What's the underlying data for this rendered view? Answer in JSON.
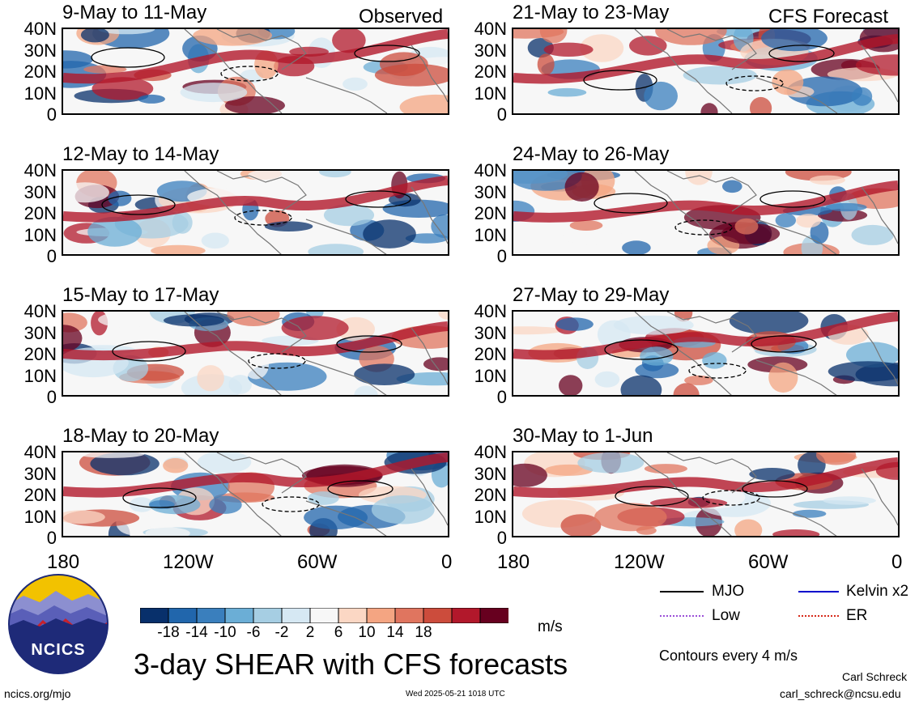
{
  "header": {
    "observed_label": "Observed",
    "forecast_label": "CFS Forecast"
  },
  "panels": {
    "left": [
      {
        "title": "9-May to 11-May"
      },
      {
        "title": "12-May to 14-May"
      },
      {
        "title": "15-May to 17-May"
      },
      {
        "title": "18-May to 20-May"
      }
    ],
    "right": [
      {
        "title": "21-May to 23-May"
      },
      {
        "title": "24-May to 26-May"
      },
      {
        "title": "27-May to 29-May"
      },
      {
        "title": "30-May to 1-Jun"
      }
    ]
  },
  "axes": {
    "lat_labels": [
      "40N",
      "30N",
      "20N",
      "10N",
      "0"
    ],
    "lon_labels": [
      "180",
      "120W",
      "60W",
      "0"
    ]
  },
  "colorbar": {
    "labels": [
      "-18",
      "-14",
      "-10",
      "-6",
      "-2",
      "2",
      "6",
      "10",
      "14",
      "18"
    ],
    "colors": [
      "#08306b",
      "#2166ac",
      "#3a7fbd",
      "#6baed6",
      "#a6cee3",
      "#d6e8f3",
      "#f7f7f7",
      "#fbd7c4",
      "#f4a582",
      "#e0755f",
      "#cc4c3c",
      "#b2182b",
      "#67001f"
    ],
    "units": "m/s"
  },
  "legend": {
    "items": [
      {
        "label": "MJO",
        "color": "#000000"
      },
      {
        "label": "Kelvin x2",
        "color": "#0000cc"
      },
      {
        "label": "Low",
        "color": "#9b4fd8"
      },
      {
        "label": "ER",
        "color": "#d62a1a"
      }
    ],
    "contour_note": "Contours every 4 m/s"
  },
  "title": "3-day SHEAR with CFS forecasts",
  "logo": {
    "text": "NCICS"
  },
  "footer": {
    "url": "ncics.org/mjo",
    "timestamp": "Wed 2025-05-21 1018 UTC",
    "author": "Carl Schreck",
    "email": "carl_schreck@ncsu.edu"
  }
}
